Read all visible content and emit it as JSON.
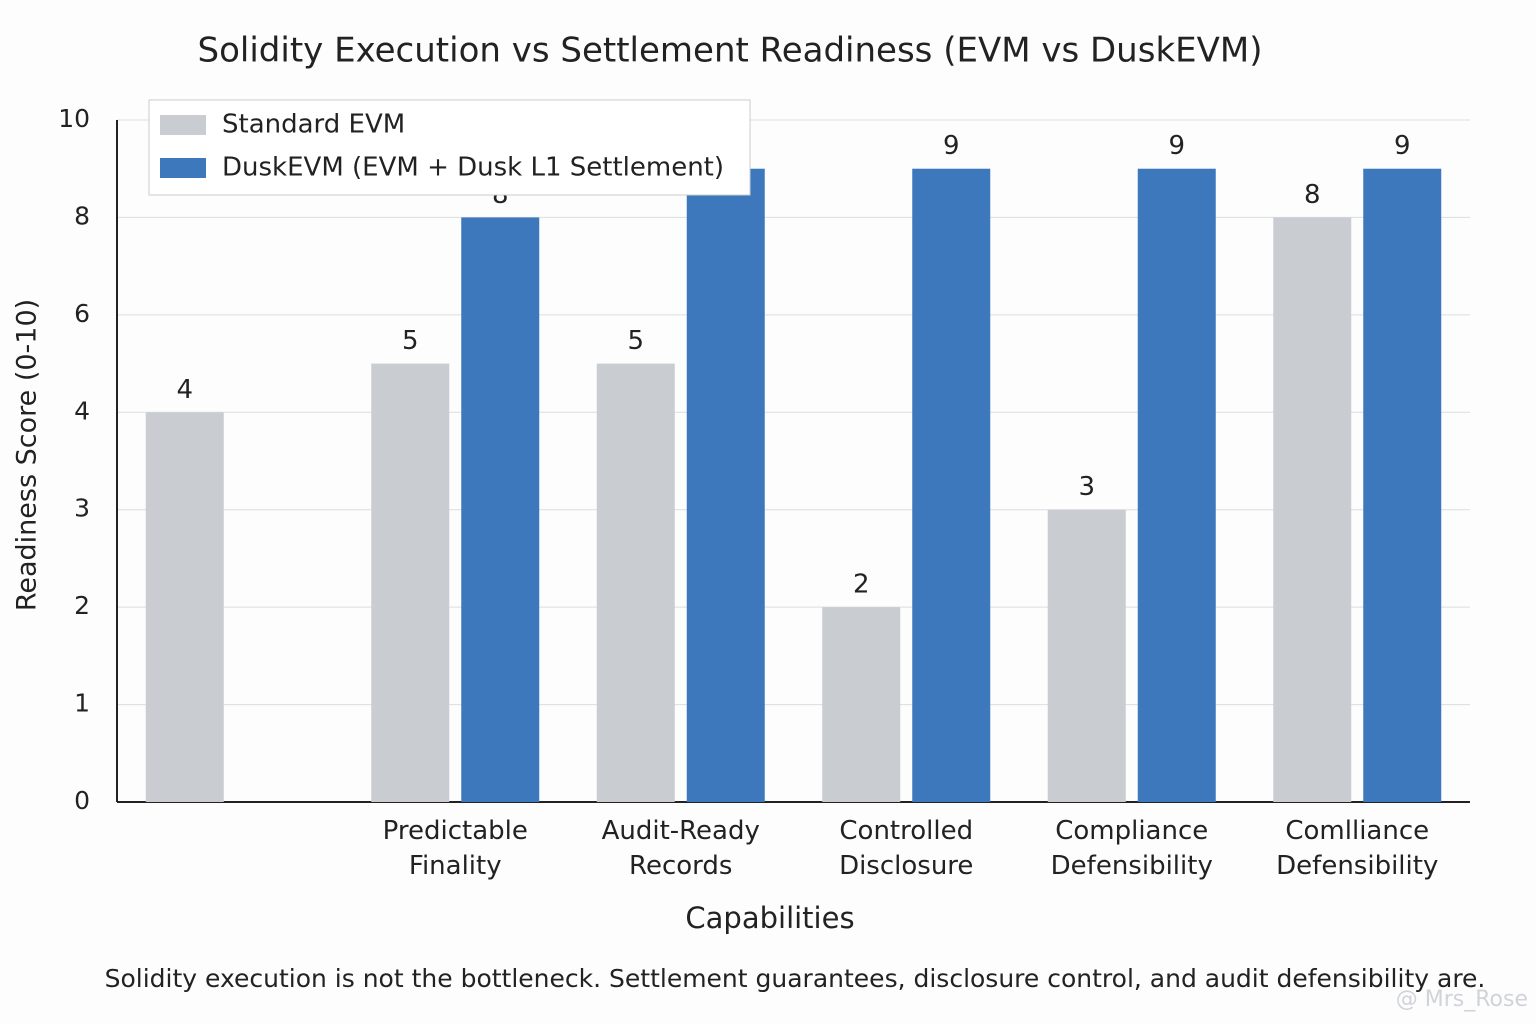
{
  "chart_data": {
    "type": "bar",
    "title": "Solidity Execution vs Settlement Readiness (EVM vs DuskEVM)",
    "x_label": "Capabilities",
    "y_label": "Readiness Score (0-10)",
    "categories": [
      null,
      "Predictable Finality",
      "Audit-Ready Records",
      "Controlled Disclosure",
      "Compliance Defensibility",
      "Comlliance Defensibility"
    ],
    "series": [
      {
        "name": "Standard EVM",
        "color": "#c9ccd1",
        "values": [
          4,
          5,
          5,
          2,
          3,
          8
        ]
      },
      {
        "name": "DuskEVM (EVM + Dusk L1 Settlement)",
        "color": "#3d78bd",
        "values": [
          null,
          8,
          9,
          9,
          9,
          9
        ]
      }
    ],
    "ylim": [
      0,
      10
    ],
    "yticks": [
      0,
      1,
      2,
      3,
      4,
      6,
      8,
      10
    ],
    "grid": true,
    "legend": "top-left",
    "footnote": "Solidity execution is not the bottleneck. Settlement guarantees, disclosure control, and audit defensibility are.",
    "watermark": "@ Mrs_Rose"
  }
}
